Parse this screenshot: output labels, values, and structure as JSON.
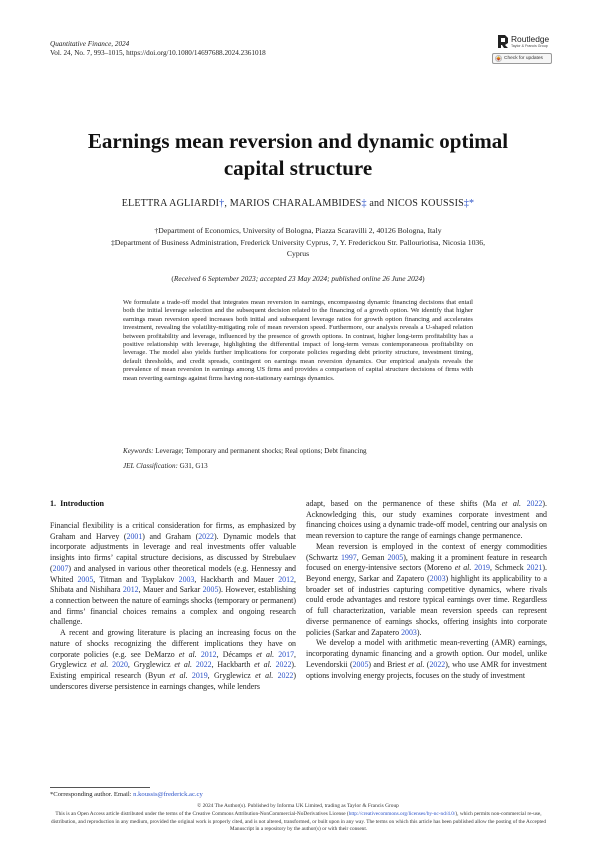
{
  "journal": {
    "name": "Quantitative Finance, 2024",
    "volume_line": "Vol. 24, No. 7, 993–1015, https://doi.org/10.1080/14697688.2024.2361018"
  },
  "publisher": {
    "name": "Routledge",
    "subtitle": "Taylor & Francis Group",
    "updates_label": "Check for updates"
  },
  "paper": {
    "title_line1": "Earnings mean reversion and dynamic optimal",
    "title_line2": "capital structure",
    "authors": [
      {
        "name": "ELETTRA AGLIARDI",
        "mark": "†"
      },
      {
        "name": "MARIOS CHARALAMBIDES",
        "mark": "‡"
      },
      {
        "name": "NICOS KOUSSIS",
        "mark": "‡*"
      }
    ],
    "author_sep": ", ",
    "author_and": " and ",
    "affiliations": [
      "†Department of Economics, University of Bologna, Piazza Scaravilli 2, 40126 Bologna, Italy",
      "‡Department of Business Administration, Frederick University Cyprus, 7, Y. Frederickou Str. Pallouriotisa, Nicosia 1036,",
      "Cyprus"
    ],
    "received": "Received 6 September 2023; accepted 23 May 2024; published online 26 June 2024",
    "abstract": "We formulate a trade-off model that integrates mean reversion in earnings, encompassing dynamic financing decisions that entail both the initial leverage selection and the subsequent decision related to the financing of a growth option. We identify that higher earnings mean reversion speed increases both initial and subsequent leverage ratios for growth option financing and accelerates investment, revealing the volatility-mitigating role of mean reversion speed. Furthermore, our analysis reveals a U-shaped relation between profitability and leverage, influenced by the presence of growth options. In contrast, higher long-term profitability has a positive relationship with leverage, highlighting the differential impact of long-term versus contemporaneous profitability on leverage. The model also yields further implications for corporate policies regarding debt priority structure, investment timing, default thresholds, and credit spreads, contingent on earnings mean reversion dynamics. Our empirical analysis reveals the prevalence of mean reversion in earnings among US firms and provides a comparison of capital structure decisions of firms with mean reverting earnings against firms having non-stationary earnings dynamics.",
    "keywords_label": "Keywords:",
    "keywords": "Leverage; Temporary and permanent shocks; Real options; Debt financing",
    "jel_label": "JEL Classification:",
    "jel": "G31, G13"
  },
  "section": {
    "number": "1.",
    "title": "Introduction"
  },
  "footnote": {
    "text": "*Corresponding author. Email: ",
    "email": "n.koussis@frederick.ac.cy"
  },
  "copyright": "© 2024 The Author(s). Published by Informa UK Limited, trading as Taylor & Francis Group",
  "license": {
    "part1": "This is an Open Access article distributed under the terms of the Creative Commons Attribution-NonCommercial-NoDerivatives License (",
    "url": "http://creativecommons.org/licenses/by-nc-nd/4.0/",
    "part2": "), which permits non-commercial re-use, distribution, and reproduction in any medium, provided the original work is properly cited, and is not altered, transformed, or built upon in any way. The terms on which this article has been published allow the posting of the Accepted Manuscript in a repository by the author(s) or with their consent."
  }
}
